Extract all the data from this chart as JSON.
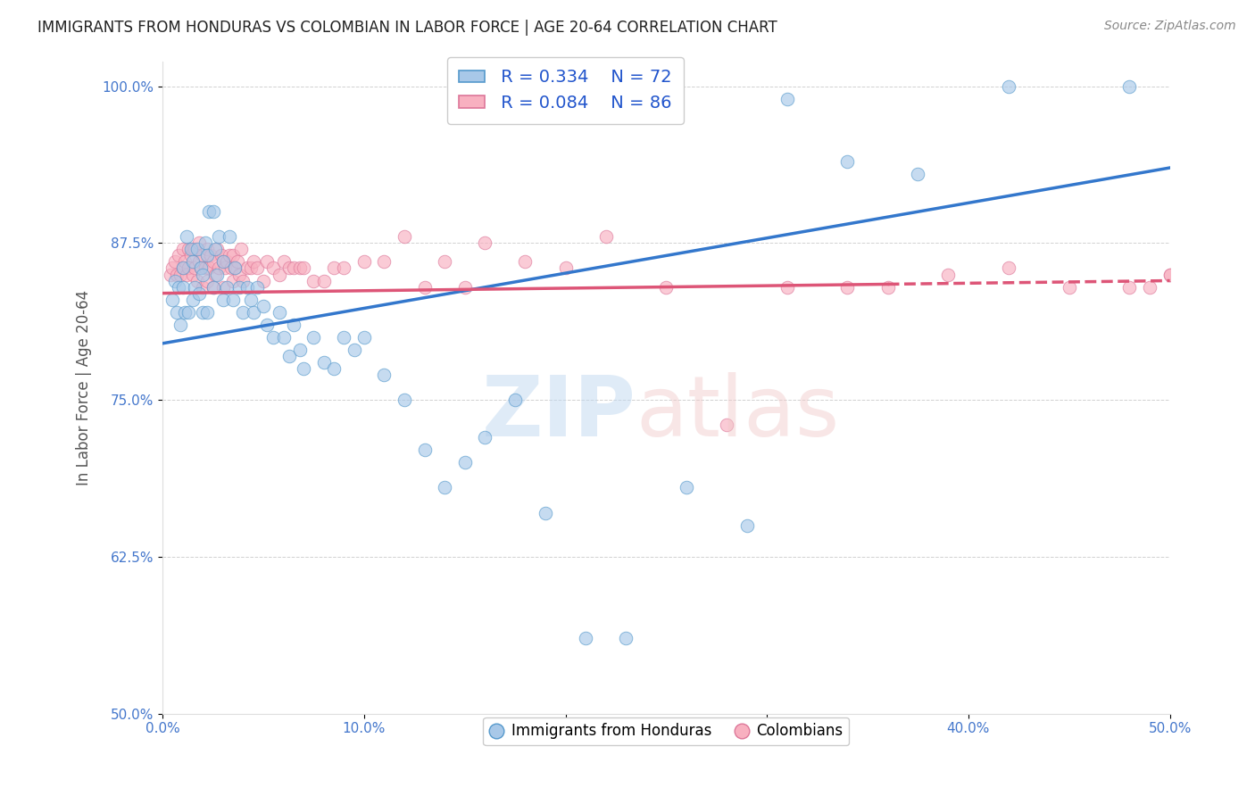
{
  "title": "IMMIGRANTS FROM HONDURAS VS COLOMBIAN IN LABOR FORCE | AGE 20-64 CORRELATION CHART",
  "source": "Source: ZipAtlas.com",
  "ylabel": "In Labor Force | Age 20-64",
  "xlim": [
    0.0,
    0.5
  ],
  "ylim": [
    0.5,
    1.02
  ],
  "xticks": [
    0.0,
    0.1,
    0.2,
    0.3,
    0.4,
    0.5
  ],
  "xticklabels": [
    "0.0%",
    "10.0%",
    "20.0%",
    "30.0%",
    "40.0%",
    "50.0%"
  ],
  "yticks": [
    0.5,
    0.625,
    0.75,
    0.875,
    1.0
  ],
  "yticklabels": [
    "50.0%",
    "62.5%",
    "75.0%",
    "87.5%",
    "100.0%"
  ],
  "legend_r_honduras": "0.334",
  "legend_n_honduras": "72",
  "legend_r_colombian": "0.084",
  "legend_n_colombian": "86",
  "blue_face": "#a8c8e8",
  "blue_edge": "#5599cc",
  "blue_line": "#3377cc",
  "pink_face": "#f8b0c0",
  "pink_edge": "#dd7799",
  "pink_line": "#dd5577",
  "tick_color": "#4477cc",
  "honduras_x": [
    0.005,
    0.006,
    0.007,
    0.008,
    0.009,
    0.01,
    0.01,
    0.011,
    0.012,
    0.013,
    0.014,
    0.015,
    0.015,
    0.016,
    0.017,
    0.018,
    0.019,
    0.02,
    0.02,
    0.021,
    0.022,
    0.022,
    0.023,
    0.025,
    0.025,
    0.026,
    0.027,
    0.028,
    0.03,
    0.03,
    0.032,
    0.033,
    0.035,
    0.036,
    0.038,
    0.04,
    0.042,
    0.044,
    0.045,
    0.047,
    0.05,
    0.052,
    0.055,
    0.058,
    0.06,
    0.063,
    0.065,
    0.068,
    0.07,
    0.075,
    0.08,
    0.085,
    0.09,
    0.095,
    0.1,
    0.11,
    0.12,
    0.13,
    0.14,
    0.15,
    0.16,
    0.175,
    0.19,
    0.21,
    0.23,
    0.26,
    0.29,
    0.31,
    0.34,
    0.375,
    0.42,
    0.48
  ],
  "honduras_y": [
    0.83,
    0.845,
    0.82,
    0.84,
    0.81,
    0.84,
    0.855,
    0.82,
    0.88,
    0.82,
    0.87,
    0.83,
    0.86,
    0.84,
    0.87,
    0.835,
    0.855,
    0.82,
    0.85,
    0.875,
    0.82,
    0.865,
    0.9,
    0.84,
    0.9,
    0.87,
    0.85,
    0.88,
    0.83,
    0.86,
    0.84,
    0.88,
    0.83,
    0.855,
    0.84,
    0.82,
    0.84,
    0.83,
    0.82,
    0.84,
    0.825,
    0.81,
    0.8,
    0.82,
    0.8,
    0.785,
    0.81,
    0.79,
    0.775,
    0.8,
    0.78,
    0.775,
    0.8,
    0.79,
    0.8,
    0.77,
    0.75,
    0.71,
    0.68,
    0.7,
    0.72,
    0.75,
    0.66,
    0.56,
    0.56,
    0.68,
    0.65,
    0.99,
    0.94,
    0.93,
    1.0,
    1.0
  ],
  "colombian_x": [
    0.004,
    0.005,
    0.006,
    0.007,
    0.008,
    0.009,
    0.01,
    0.01,
    0.011,
    0.012,
    0.013,
    0.013,
    0.014,
    0.015,
    0.015,
    0.016,
    0.016,
    0.017,
    0.018,
    0.018,
    0.019,
    0.02,
    0.02,
    0.021,
    0.022,
    0.022,
    0.023,
    0.024,
    0.025,
    0.025,
    0.026,
    0.027,
    0.028,
    0.029,
    0.03,
    0.03,
    0.031,
    0.032,
    0.033,
    0.034,
    0.035,
    0.035,
    0.036,
    0.037,
    0.038,
    0.039,
    0.04,
    0.042,
    0.044,
    0.045,
    0.047,
    0.05,
    0.052,
    0.055,
    0.058,
    0.06,
    0.063,
    0.065,
    0.068,
    0.07,
    0.075,
    0.08,
    0.085,
    0.09,
    0.1,
    0.11,
    0.12,
    0.13,
    0.14,
    0.15,
    0.16,
    0.18,
    0.2,
    0.22,
    0.25,
    0.28,
    0.31,
    0.34,
    0.36,
    0.39,
    0.42,
    0.45,
    0.48,
    0.49,
    0.5,
    0.5
  ],
  "colombian_y": [
    0.85,
    0.855,
    0.86,
    0.85,
    0.865,
    0.85,
    0.855,
    0.87,
    0.86,
    0.85,
    0.87,
    0.855,
    0.865,
    0.85,
    0.87,
    0.855,
    0.87,
    0.845,
    0.86,
    0.875,
    0.855,
    0.84,
    0.865,
    0.855,
    0.845,
    0.87,
    0.855,
    0.865,
    0.84,
    0.86,
    0.85,
    0.87,
    0.855,
    0.865,
    0.84,
    0.86,
    0.855,
    0.86,
    0.865,
    0.855,
    0.845,
    0.865,
    0.855,
    0.86,
    0.85,
    0.87,
    0.845,
    0.855,
    0.855,
    0.86,
    0.855,
    0.845,
    0.86,
    0.855,
    0.85,
    0.86,
    0.855,
    0.855,
    0.855,
    0.855,
    0.845,
    0.845,
    0.855,
    0.855,
    0.86,
    0.86,
    0.88,
    0.84,
    0.86,
    0.84,
    0.875,
    0.86,
    0.855,
    0.88,
    0.84,
    0.73,
    0.84,
    0.84,
    0.84,
    0.85,
    0.855,
    0.84,
    0.84,
    0.84,
    0.85,
    0.85
  ],
  "blue_trend_x0": 0.0,
  "blue_trend_y0": 0.795,
  "blue_trend_x1": 0.5,
  "blue_trend_y1": 0.935,
  "pink_trend_x0": 0.0,
  "pink_trend_y0": 0.835,
  "pink_trend_x1": 0.5,
  "pink_trend_y1": 0.845
}
